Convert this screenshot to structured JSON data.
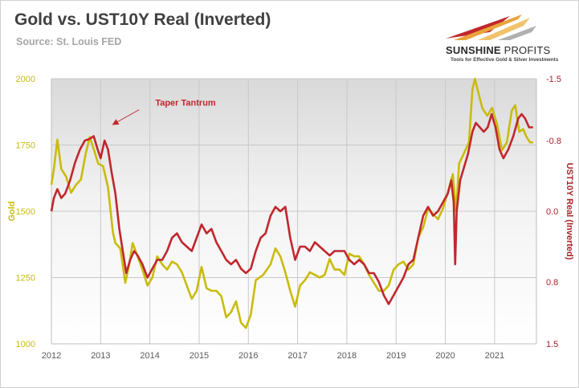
{
  "header": {
    "title": "Gold vs. UST10Y Real (Inverted)",
    "subtitle": "Source: St. Louis FED"
  },
  "logo": {
    "name_part1": "SUNSHINE",
    "name_part2": " PROFITS",
    "tagline": "Tools for Effective Gold & Silver Investments"
  },
  "colors": {
    "gold_series": "#c9bb0c",
    "real_yield_series": "#c0272d",
    "left_axis_text": "#c9bb0c",
    "right_axis_text": "#a8232b",
    "annotation": "#c0272d"
  },
  "chart_data": {
    "type": "line",
    "xlabel": "",
    "x_ticks": [
      "2012",
      "2013",
      "2014",
      "2015",
      "2016",
      "2017",
      "2018",
      "2019",
      "2020",
      "2021"
    ],
    "xlim": [
      2012.0,
      2021.85
    ],
    "y_left": {
      "label": "Gold",
      "ylim": [
        1000,
        2000
      ],
      "ticks": [
        "1000",
        "1250",
        "1500",
        "1750",
        "2000"
      ]
    },
    "y_right": {
      "label": "UST10Y Real (Inverted)",
      "inverted": true,
      "ylim": [
        1.5,
        -1.5
      ],
      "ticks": [
        "1.5",
        "0.8",
        "0.0",
        "-0.8",
        "-1.5"
      ]
    },
    "grid": true,
    "legend": "none",
    "annotations": [
      {
        "text": "Taper Tantrum",
        "x": 2013.0,
        "y_right": -0.95
      }
    ],
    "series": [
      {
        "axis": "left",
        "points": [
          [
            2012.0,
            1600
          ],
          [
            2012.05,
            1660
          ],
          [
            2012.12,
            1770
          ],
          [
            2012.2,
            1660
          ],
          [
            2012.3,
            1630
          ],
          [
            2012.4,
            1570
          ],
          [
            2012.5,
            1600
          ],
          [
            2012.6,
            1620
          ],
          [
            2012.7,
            1720
          ],
          [
            2012.78,
            1780
          ],
          [
            2012.85,
            1740
          ],
          [
            2012.95,
            1680
          ],
          [
            2013.05,
            1670
          ],
          [
            2013.15,
            1590
          ],
          [
            2013.25,
            1420
          ],
          [
            2013.3,
            1380
          ],
          [
            2013.4,
            1360
          ],
          [
            2013.5,
            1230
          ],
          [
            2013.58,
            1300
          ],
          [
            2013.65,
            1380
          ],
          [
            2013.75,
            1330
          ],
          [
            2013.85,
            1280
          ],
          [
            2013.95,
            1220
          ],
          [
            2014.05,
            1250
          ],
          [
            2014.15,
            1330
          ],
          [
            2014.25,
            1300
          ],
          [
            2014.35,
            1280
          ],
          [
            2014.45,
            1310
          ],
          [
            2014.55,
            1300
          ],
          [
            2014.65,
            1270
          ],
          [
            2014.75,
            1220
          ],
          [
            2014.85,
            1170
          ],
          [
            2014.95,
            1200
          ],
          [
            2015.05,
            1290
          ],
          [
            2015.15,
            1210
          ],
          [
            2015.25,
            1200
          ],
          [
            2015.35,
            1200
          ],
          [
            2015.45,
            1180
          ],
          [
            2015.55,
            1100
          ],
          [
            2015.65,
            1120
          ],
          [
            2015.75,
            1160
          ],
          [
            2015.85,
            1080
          ],
          [
            2015.95,
            1060
          ],
          [
            2016.05,
            1110
          ],
          [
            2016.15,
            1240
          ],
          [
            2016.3,
            1260
          ],
          [
            2016.45,
            1300
          ],
          [
            2016.55,
            1360
          ],
          [
            2016.65,
            1330
          ],
          [
            2016.75,
            1270
          ],
          [
            2016.85,
            1200
          ],
          [
            2016.95,
            1140
          ],
          [
            2017.05,
            1220
          ],
          [
            2017.15,
            1240
          ],
          [
            2017.25,
            1270
          ],
          [
            2017.35,
            1260
          ],
          [
            2017.45,
            1250
          ],
          [
            2017.55,
            1260
          ],
          [
            2017.65,
            1320
          ],
          [
            2017.75,
            1280
          ],
          [
            2017.85,
            1280
          ],
          [
            2017.95,
            1260
          ],
          [
            2018.05,
            1340
          ],
          [
            2018.15,
            1330
          ],
          [
            2018.25,
            1330
          ],
          [
            2018.35,
            1300
          ],
          [
            2018.45,
            1260
          ],
          [
            2018.55,
            1230
          ],
          [
            2018.65,
            1200
          ],
          [
            2018.75,
            1200
          ],
          [
            2018.85,
            1220
          ],
          [
            2018.95,
            1280
          ],
          [
            2019.05,
            1300
          ],
          [
            2019.15,
            1310
          ],
          [
            2019.25,
            1280
          ],
          [
            2019.35,
            1300
          ],
          [
            2019.45,
            1400
          ],
          [
            2019.55,
            1440
          ],
          [
            2019.65,
            1510
          ],
          [
            2019.75,
            1490
          ],
          [
            2019.85,
            1470
          ],
          [
            2019.95,
            1510
          ],
          [
            2020.05,
            1570
          ],
          [
            2020.15,
            1640
          ],
          [
            2020.22,
            1500
          ],
          [
            2020.28,
            1680
          ],
          [
            2020.38,
            1720
          ],
          [
            2020.48,
            1760
          ],
          [
            2020.55,
            1960
          ],
          [
            2020.6,
            2000
          ],
          [
            2020.68,
            1940
          ],
          [
            2020.75,
            1890
          ],
          [
            2020.85,
            1860
          ],
          [
            2020.95,
            1890
          ],
          [
            2021.05,
            1830
          ],
          [
            2021.15,
            1730
          ],
          [
            2021.25,
            1760
          ],
          [
            2021.35,
            1880
          ],
          [
            2021.42,
            1900
          ],
          [
            2021.5,
            1800
          ],
          [
            2021.58,
            1810
          ],
          [
            2021.65,
            1780
          ],
          [
            2021.72,
            1760
          ],
          [
            2021.78,
            1760
          ]
        ]
      },
      {
        "axis": "right",
        "points": [
          [
            2012.0,
            0.0
          ],
          [
            2012.05,
            -0.15
          ],
          [
            2012.12,
            -0.25
          ],
          [
            2012.2,
            -0.15
          ],
          [
            2012.28,
            -0.2
          ],
          [
            2012.38,
            -0.35
          ],
          [
            2012.48,
            -0.55
          ],
          [
            2012.58,
            -0.7
          ],
          [
            2012.68,
            -0.8
          ],
          [
            2012.78,
            -0.82
          ],
          [
            2012.86,
            -0.85
          ],
          [
            2012.94,
            -0.7
          ],
          [
            2013.0,
            -0.6
          ],
          [
            2013.08,
            -0.8
          ],
          [
            2013.15,
            -0.7
          ],
          [
            2013.22,
            -0.45
          ],
          [
            2013.3,
            -0.2
          ],
          [
            2013.38,
            0.2
          ],
          [
            2013.45,
            0.45
          ],
          [
            2013.52,
            0.7
          ],
          [
            2013.6,
            0.55
          ],
          [
            2013.68,
            0.45
          ],
          [
            2013.75,
            0.5
          ],
          [
            2013.85,
            0.6
          ],
          [
            2013.95,
            0.75
          ],
          [
            2014.05,
            0.65
          ],
          [
            2014.15,
            0.55
          ],
          [
            2014.25,
            0.55
          ],
          [
            2014.35,
            0.45
          ],
          [
            2014.45,
            0.3
          ],
          [
            2014.55,
            0.25
          ],
          [
            2014.65,
            0.35
          ],
          [
            2014.75,
            0.4
          ],
          [
            2014.85,
            0.45
          ],
          [
            2014.95,
            0.3
          ],
          [
            2015.05,
            0.15
          ],
          [
            2015.15,
            0.25
          ],
          [
            2015.25,
            0.2
          ],
          [
            2015.35,
            0.35
          ],
          [
            2015.45,
            0.45
          ],
          [
            2015.55,
            0.55
          ],
          [
            2015.65,
            0.6
          ],
          [
            2015.75,
            0.55
          ],
          [
            2015.85,
            0.65
          ],
          [
            2015.95,
            0.7
          ],
          [
            2016.05,
            0.65
          ],
          [
            2016.15,
            0.45
          ],
          [
            2016.25,
            0.3
          ],
          [
            2016.35,
            0.25
          ],
          [
            2016.45,
            0.05
          ],
          [
            2016.55,
            -0.05
          ],
          [
            2016.65,
            0.0
          ],
          [
            2016.75,
            -0.05
          ],
          [
            2016.85,
            0.3
          ],
          [
            2016.95,
            0.55
          ],
          [
            2017.05,
            0.4
          ],
          [
            2017.15,
            0.4
          ],
          [
            2017.25,
            0.45
          ],
          [
            2017.35,
            0.35
          ],
          [
            2017.45,
            0.4
          ],
          [
            2017.55,
            0.45
          ],
          [
            2017.65,
            0.5
          ],
          [
            2017.75,
            0.45
          ],
          [
            2017.85,
            0.45
          ],
          [
            2017.95,
            0.45
          ],
          [
            2018.05,
            0.55
          ],
          [
            2018.15,
            0.6
          ],
          [
            2018.25,
            0.55
          ],
          [
            2018.35,
            0.6
          ],
          [
            2018.45,
            0.7
          ],
          [
            2018.55,
            0.7
          ],
          [
            2018.65,
            0.8
          ],
          [
            2018.75,
            0.95
          ],
          [
            2018.85,
            1.05
          ],
          [
            2018.95,
            0.95
          ],
          [
            2019.05,
            0.85
          ],
          [
            2019.15,
            0.75
          ],
          [
            2019.25,
            0.6
          ],
          [
            2019.35,
            0.55
          ],
          [
            2019.45,
            0.3
          ],
          [
            2019.55,
            0.05
          ],
          [
            2019.65,
            -0.05
          ],
          [
            2019.75,
            0.05
          ],
          [
            2019.85,
            0.0
          ],
          [
            2019.95,
            -0.1
          ],
          [
            2020.05,
            -0.2
          ],
          [
            2020.12,
            -0.35
          ],
          [
            2020.17,
            -0.1
          ],
          [
            2020.2,
            0.6
          ],
          [
            2020.23,
            0.0
          ],
          [
            2020.3,
            -0.35
          ],
          [
            2020.38,
            -0.5
          ],
          [
            2020.46,
            -0.65
          ],
          [
            2020.55,
            -0.9
          ],
          [
            2020.62,
            -1.0
          ],
          [
            2020.7,
            -0.95
          ],
          [
            2020.78,
            -0.9
          ],
          [
            2020.86,
            -0.95
          ],
          [
            2020.94,
            -1.1
          ],
          [
            2021.02,
            -0.95
          ],
          [
            2021.1,
            -0.7
          ],
          [
            2021.18,
            -0.6
          ],
          [
            2021.28,
            -0.7
          ],
          [
            2021.38,
            -0.85
          ],
          [
            2021.48,
            -1.05
          ],
          [
            2021.55,
            -1.1
          ],
          [
            2021.62,
            -1.05
          ],
          [
            2021.7,
            -0.95
          ],
          [
            2021.78,
            -0.95
          ]
        ]
      }
    ]
  }
}
